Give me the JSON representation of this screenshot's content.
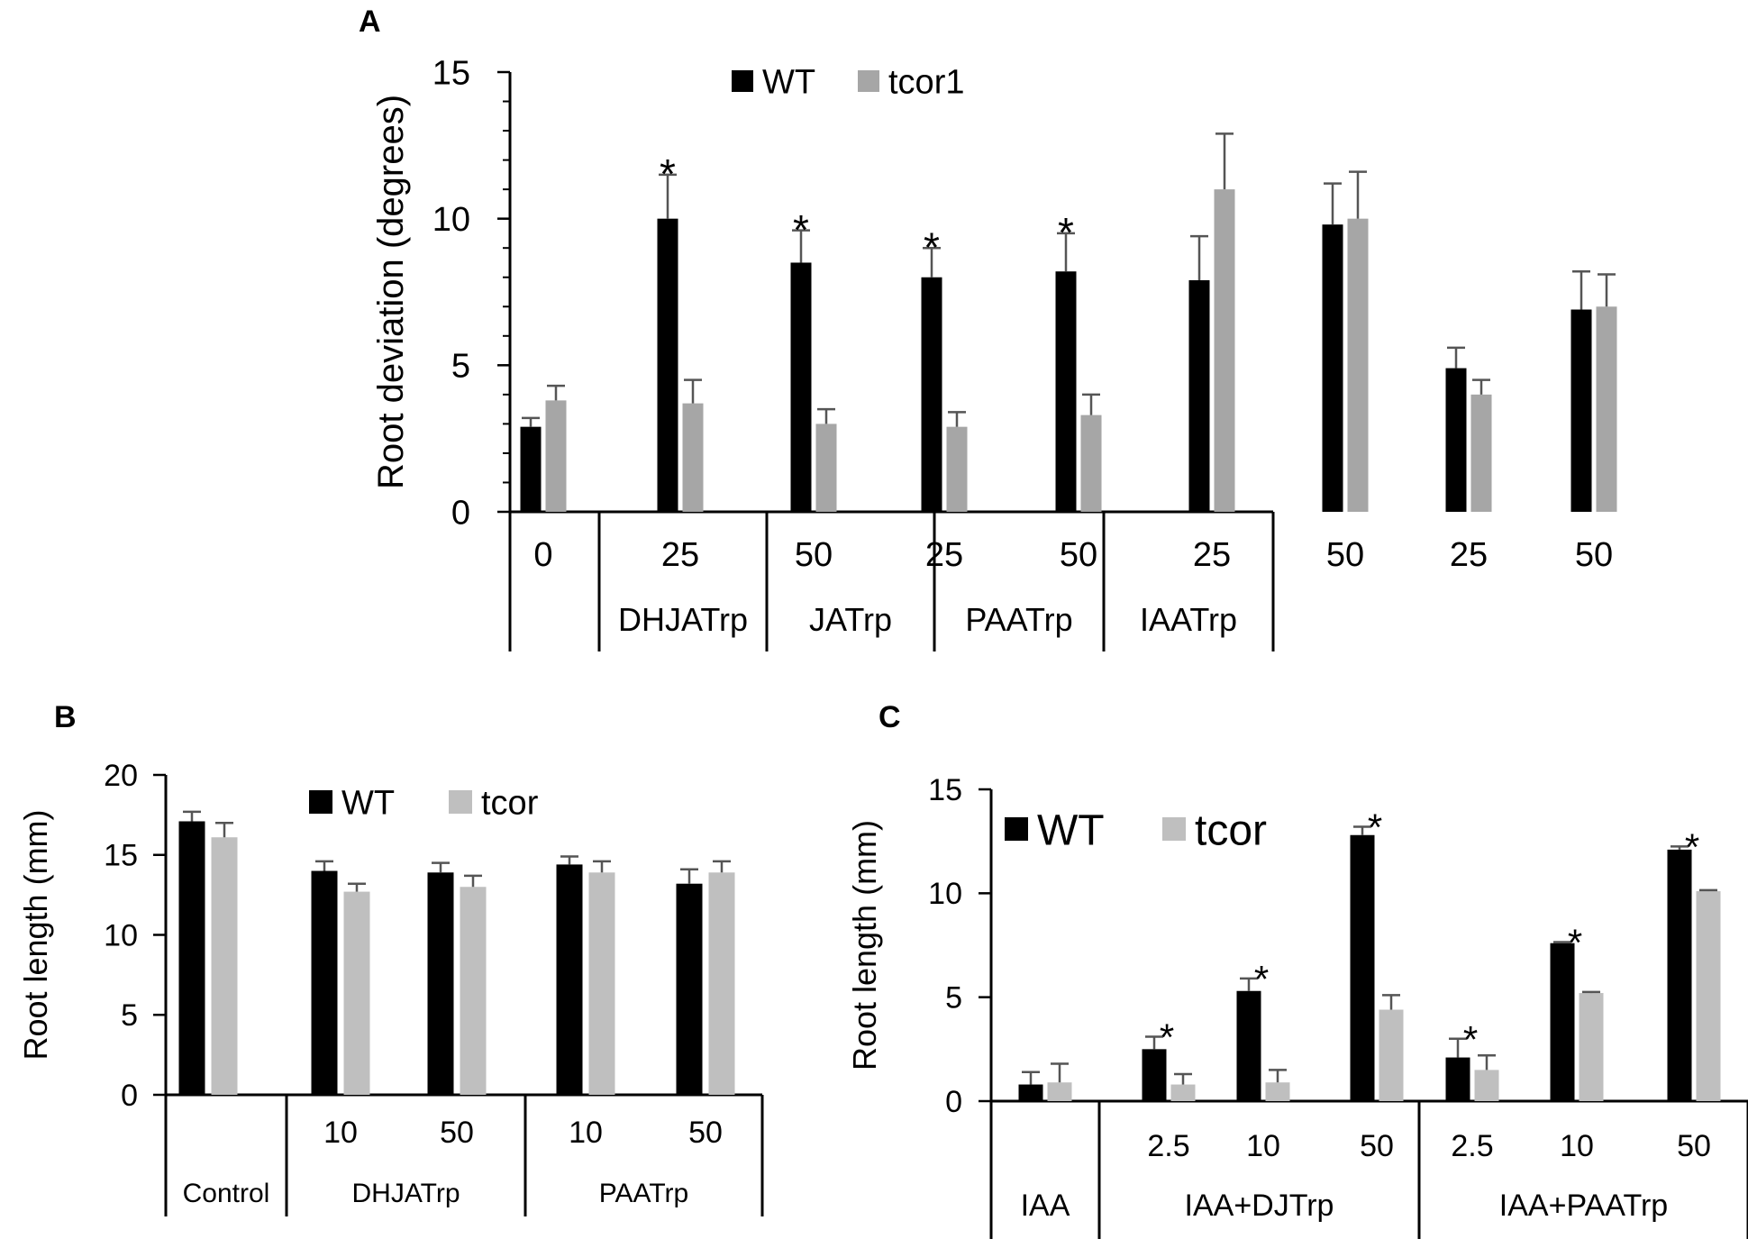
{
  "colors": {
    "wt": "#000000",
    "mutant_a": "#a6a6a6",
    "mutant_bc": "#bfbfbf",
    "axis": "#000000",
    "error": "#555555"
  },
  "chart_data": [
    {
      "panel": "A",
      "type": "bar",
      "ylabel": "Root deviation (degrees)",
      "ylim": [
        0,
        15
      ],
      "yticks": [
        0,
        5,
        10,
        15
      ],
      "ytick_labels": [
        "0",
        "5",
        "10",
        "15"
      ],
      "legend_position": "top",
      "categories": [
        "0",
        "25",
        "50",
        "25",
        "50",
        "25",
        "50",
        "25",
        "50"
      ],
      "groups": [
        {
          "label": "",
          "count": 1
        },
        {
          "label": "DHJATrp",
          "count": 2
        },
        {
          "label": "JATrp",
          "count": 2
        },
        {
          "label": "PAATrp",
          "count": 2
        },
        {
          "label": "IAATrp",
          "count": 2
        }
      ],
      "series": [
        {
          "name": "WT",
          "values": [
            2.9,
            10.0,
            8.5,
            8.0,
            8.2,
            7.9,
            9.8,
            4.9,
            6.9
          ],
          "errors": [
            0.3,
            1.5,
            1.1,
            1.0,
            1.3,
            1.5,
            1.4,
            0.7,
            1.3
          ]
        },
        {
          "name": "tcor1",
          "values": [
            3.8,
            3.7,
            3.0,
            2.9,
            3.3,
            11.0,
            10.0,
            4.0,
            7.0
          ],
          "errors": [
            0.5,
            0.8,
            0.5,
            0.5,
            0.7,
            1.9,
            1.6,
            0.5,
            1.1
          ]
        }
      ],
      "significance": [
        {
          "category_index": 1,
          "series": "WT",
          "text": "*"
        },
        {
          "category_index": 2,
          "series": "WT",
          "text": "*"
        },
        {
          "category_index": 3,
          "series": "WT",
          "text": "*"
        },
        {
          "category_index": 4,
          "series": "WT",
          "text": "*"
        }
      ]
    },
    {
      "panel": "B",
      "type": "bar",
      "ylabel": "Root length (mm)",
      "ylim": [
        0,
        20
      ],
      "yticks": [
        0,
        5,
        10,
        15,
        20
      ],
      "ytick_labels": [
        "0",
        "5",
        "10",
        "15",
        "20"
      ],
      "legend_position": "top",
      "categories": [
        "",
        "10",
        "50",
        "10",
        "50"
      ],
      "groups": [
        {
          "label": "Control",
          "count": 1
        },
        {
          "label": "DHJATrp",
          "count": 2
        },
        {
          "label": "PAATrp",
          "count": 2
        }
      ],
      "series": [
        {
          "name": "WT",
          "values": [
            17.1,
            14.0,
            13.9,
            14.4,
            13.2
          ],
          "errors": [
            0.6,
            0.6,
            0.6,
            0.5,
            0.9
          ]
        },
        {
          "name": "tcor",
          "values": [
            16.1,
            12.7,
            13.0,
            13.9,
            13.9
          ],
          "errors": [
            0.9,
            0.5,
            0.7,
            0.7,
            0.7
          ]
        }
      ],
      "significance": []
    },
    {
      "panel": "C",
      "type": "bar",
      "ylabel": "Root length (mm)",
      "ylim": [
        0,
        15
      ],
      "yticks": [
        0,
        5,
        10,
        15
      ],
      "ytick_labels": [
        "0",
        "5",
        "10",
        "15"
      ],
      "legend_position": "top-left",
      "categories": [
        "",
        "2.5",
        "10",
        "50",
        "2.5",
        "10",
        "50"
      ],
      "groups": [
        {
          "label": "IAA",
          "count": 1
        },
        {
          "label": "IAA+DJTrp",
          "count": 3
        },
        {
          "label": "IAA+PAATrp",
          "count": 3
        }
      ],
      "series": [
        {
          "name": "WT",
          "values": [
            0.8,
            2.5,
            5.3,
            12.8,
            2.1,
            7.6,
            12.1
          ],
          "errors": [
            0.6,
            0.6,
            0.6,
            0.4,
            0.9,
            0.05,
            0.15
          ]
        },
        {
          "name": "tcor",
          "values": [
            0.9,
            0.8,
            0.9,
            4.4,
            1.5,
            5.2,
            10.1
          ],
          "errors": [
            0.9,
            0.5,
            0.6,
            0.7,
            0.7,
            0.05,
            0.05
          ]
        }
      ],
      "significance": [
        {
          "category_index": 1,
          "series": "WT",
          "text": "*"
        },
        {
          "category_index": 2,
          "series": "WT",
          "text": "*"
        },
        {
          "category_index": 3,
          "series": "WT",
          "text": "*"
        },
        {
          "category_index": 4,
          "series": "WT",
          "text": "*"
        },
        {
          "category_index": 5,
          "series": "WT",
          "text": "*"
        },
        {
          "category_index": 6,
          "series": "WT",
          "text": "*"
        }
      ]
    }
  ]
}
